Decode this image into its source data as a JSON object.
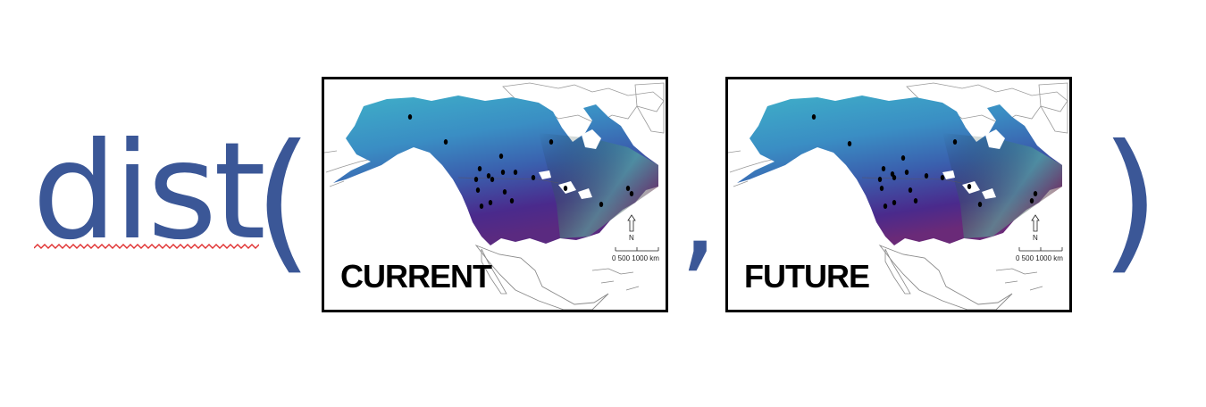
{
  "expression": {
    "function_name": "dist",
    "open_paren": "(",
    "separator": ",",
    "close_paren": ")"
  },
  "panels": [
    {
      "label": "CURRENT",
      "north_label": "N",
      "scale_label": "0     500 1000 km"
    },
    {
      "label": "FUTURE",
      "north_label": "N",
      "scale_label": "0     500 1000 km"
    }
  ],
  "colors": {
    "text": "#3b5797",
    "spellcheck_underline": "#e03030",
    "range_north": "#3fb0c8",
    "range_mid": "#3a6fb0",
    "range_south": "#4a2a8c",
    "range_southeast": "#7a3060",
    "occurrence_dot": "#000000"
  }
}
